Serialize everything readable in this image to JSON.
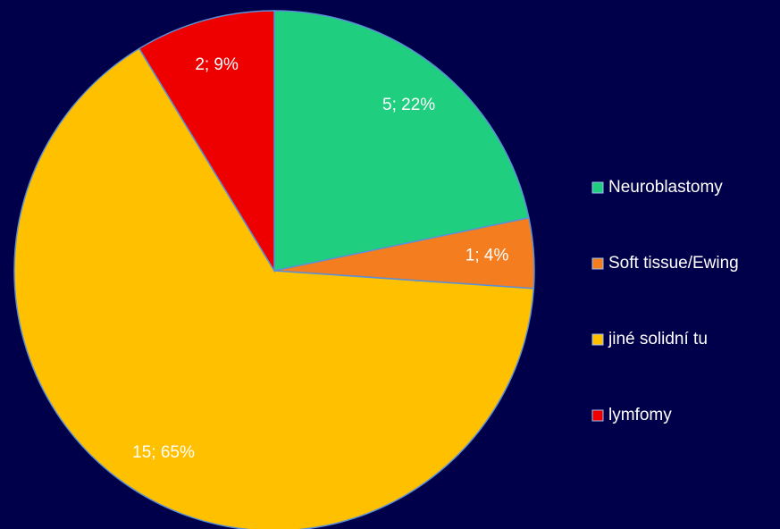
{
  "chart_data": {
    "type": "pie",
    "categories": [
      "Neuroblastomy",
      "Soft tissue/Ewing",
      "jiné solidní tu",
      "lymfomy"
    ],
    "values": [
      5,
      1,
      15,
      2
    ],
    "value_labels": [
      "5; 22%",
      "1; 4%",
      "15; 65%",
      "2; 9%"
    ],
    "colors": [
      "#1fce7e",
      "#f47d20",
      "#ffc000",
      "#ee0000"
    ],
    "legend": "right"
  }
}
